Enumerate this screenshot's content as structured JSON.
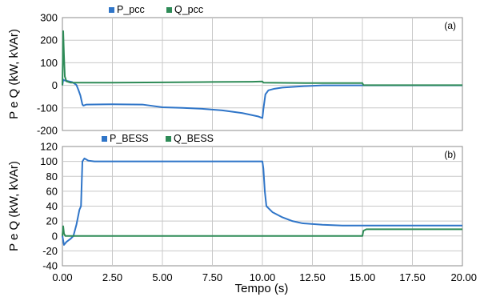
{
  "xlabel": "Tempo (s)",
  "x_ticks": [
    "0.00",
    "2.50",
    "5.00",
    "7.50",
    "10.00",
    "12.50",
    "15.00",
    "17.50",
    "20.00"
  ],
  "chart_data": [
    {
      "type": "line",
      "panel_label": "(a)",
      "ylabel": "P e Q (kW, kVAr)",
      "xlim": [
        0,
        20
      ],
      "ylim": [
        -200,
        300
      ],
      "y_ticks": [
        "300",
        "200",
        "100",
        "0",
        "-100",
        "-200"
      ],
      "grid": true,
      "legend": "top-center",
      "series": [
        {
          "name": "P_pcc",
          "color": "#2f75c8",
          "points": [
            [
              0,
              0
            ],
            [
              0.04,
              25
            ],
            [
              0.1,
              22
            ],
            [
              0.3,
              18
            ],
            [
              0.5,
              14
            ],
            [
              0.7,
              2
            ],
            [
              0.8,
              -20
            ],
            [
              0.9,
              -45
            ],
            [
              1.0,
              -85
            ],
            [
              1.05,
              -90
            ],
            [
              1.2,
              -85
            ],
            [
              2.5,
              -84
            ],
            [
              4.0,
              -85
            ],
            [
              5.0,
              -97
            ],
            [
              6.0,
              -100
            ],
            [
              7.0,
              -104
            ],
            [
              8.0,
              -111
            ],
            [
              9.0,
              -123
            ],
            [
              9.8,
              -138
            ],
            [
              10.0,
              -145
            ],
            [
              10.05,
              -105
            ],
            [
              10.15,
              -40
            ],
            [
              10.3,
              -22
            ],
            [
              10.6,
              -15
            ],
            [
              11.0,
              -10
            ],
            [
              12.0,
              -4
            ],
            [
              13.0,
              0
            ],
            [
              15.0,
              0
            ],
            [
              20.0,
              0
            ]
          ]
        },
        {
          "name": "Q_pcc",
          "color": "#2e8b57",
          "points": [
            [
              0,
              0
            ],
            [
              0.04,
              240
            ],
            [
              0.08,
              130
            ],
            [
              0.12,
              40
            ],
            [
              0.2,
              18
            ],
            [
              0.4,
              12
            ],
            [
              1.0,
              12
            ],
            [
              2.5,
              12
            ],
            [
              5.0,
              13
            ],
            [
              7.5,
              15
            ],
            [
              9.5,
              16
            ],
            [
              10.0,
              17
            ],
            [
              10.05,
              12
            ],
            [
              12.5,
              10
            ],
            [
              15.0,
              10
            ],
            [
              15.05,
              1
            ],
            [
              20.0,
              1
            ]
          ]
        }
      ]
    },
    {
      "type": "line",
      "panel_label": "(b)",
      "ylabel": "P e Q (kW, kVAr)",
      "xlim": [
        0,
        20
      ],
      "ylim": [
        -40,
        120
      ],
      "y_ticks": [
        "120",
        "100",
        "80",
        "60",
        "40",
        "20",
        "0",
        "-20",
        "-40"
      ],
      "grid": true,
      "legend": "top-center",
      "series": [
        {
          "name": "P_BESS",
          "color": "#2f75c8",
          "points": [
            [
              0,
              0
            ],
            [
              0.08,
              -12
            ],
            [
              0.2,
              -8
            ],
            [
              0.4,
              -4
            ],
            [
              0.55,
              0
            ],
            [
              0.7,
              15
            ],
            [
              0.85,
              35
            ],
            [
              0.93,
              40
            ],
            [
              1.0,
              100
            ],
            [
              1.1,
              104
            ],
            [
              1.3,
              101
            ],
            [
              1.6,
              100
            ],
            [
              5.0,
              100
            ],
            [
              10.0,
              100
            ],
            [
              10.05,
              90
            ],
            [
              10.12,
              60
            ],
            [
              10.2,
              40
            ],
            [
              10.5,
              32
            ],
            [
              11.0,
              25
            ],
            [
              11.5,
              20
            ],
            [
              12.0,
              17
            ],
            [
              13.0,
              15
            ],
            [
              14.0,
              14
            ],
            [
              15.0,
              14
            ],
            [
              20.0,
              14
            ]
          ]
        },
        {
          "name": "Q_BESS",
          "color": "#2e8b57",
          "points": [
            [
              0,
              0
            ],
            [
              0.04,
              13
            ],
            [
              0.08,
              3
            ],
            [
              0.15,
              0
            ],
            [
              1.0,
              0
            ],
            [
              5.0,
              0
            ],
            [
              10.0,
              0
            ],
            [
              10.05,
              0
            ],
            [
              15.0,
              0
            ],
            [
              15.05,
              7
            ],
            [
              15.2,
              9
            ],
            [
              20.0,
              9
            ]
          ]
        }
      ]
    }
  ]
}
